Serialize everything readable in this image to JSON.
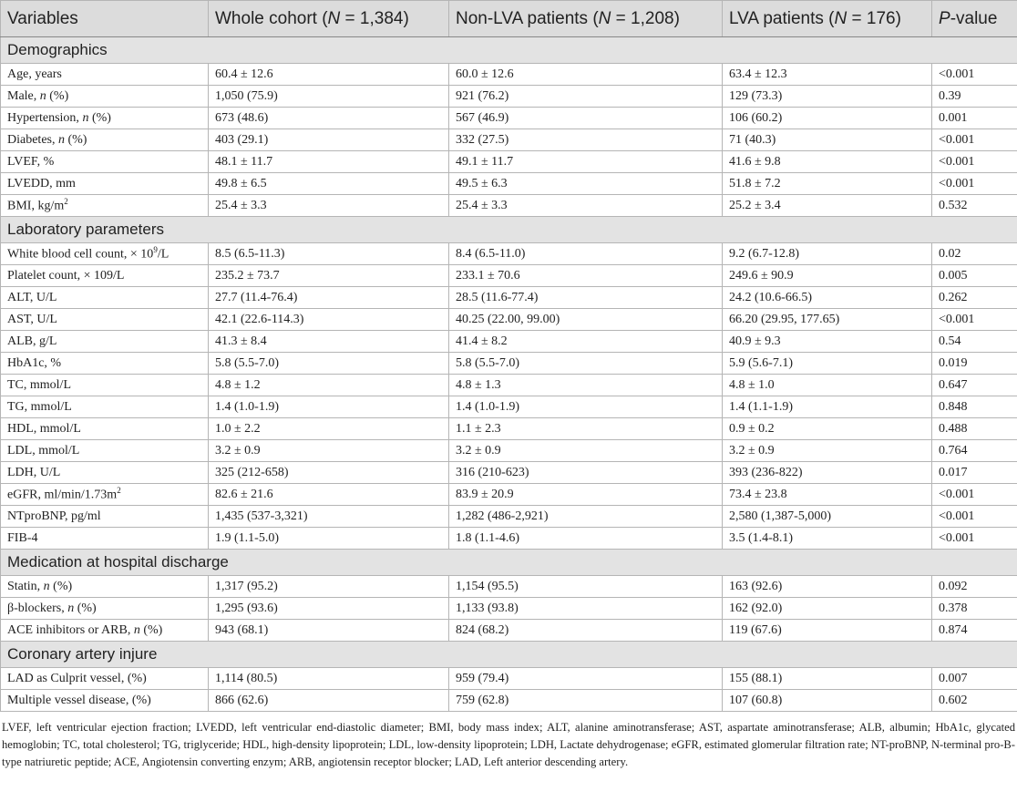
{
  "table": {
    "header": [
      "Variables",
      [
        "Whole cohort (",
        {
          "i": "N"
        },
        " = 1,384)"
      ],
      [
        "Non-LVA patients (",
        {
          "i": "N"
        },
        " = 1,208)"
      ],
      [
        "LVA patients (",
        {
          "i": "N"
        },
        " = 176)"
      ],
      [
        {
          "i": "P"
        },
        "-value"
      ]
    ],
    "sections": [
      {
        "title": "Demographics",
        "rows": [
          [
            "Age, years",
            "60.4 ± 12.6",
            "60.0 ± 12.6",
            "63.4 ± 12.3",
            "<0.001"
          ],
          [
            [
              "Male, ",
              {
                "i": "n"
              },
              " (%)"
            ],
            "1,050 (75.9)",
            "921 (76.2)",
            "129 (73.3)",
            "0.39"
          ],
          [
            [
              "Hypertension, ",
              {
                "i": "n"
              },
              " (%)"
            ],
            "673 (48.6)",
            "567 (46.9)",
            "106 (60.2)",
            "0.001"
          ],
          [
            [
              "Diabetes, ",
              {
                "i": "n"
              },
              " (%)"
            ],
            "403 (29.1)",
            "332 (27.5)",
            "71 (40.3)",
            "<0.001"
          ],
          [
            "LVEF, %",
            "48.1 ± 11.7",
            "49.1 ± 11.7",
            "41.6 ± 9.8",
            "<0.001"
          ],
          [
            "LVEDD, mm",
            "49.8 ± 6.5",
            "49.5 ± 6.3",
            "51.8 ± 7.2",
            "<0.001"
          ],
          [
            [
              "BMI, kg/m",
              {
                "sup": "2"
              }
            ],
            "25.4 ± 3.3",
            "25.4 ± 3.3",
            "25.2 ± 3.4",
            "0.532"
          ]
        ]
      },
      {
        "title": "Laboratory parameters",
        "rows": [
          [
            [
              "White blood cell count, × 10",
              {
                "sup": "9"
              },
              "/L"
            ],
            "8.5 (6.5-11.3)",
            "8.4 (6.5-11.0)",
            "9.2 (6.7-12.8)",
            "0.02"
          ],
          [
            "Platelet count, × 109/L",
            "235.2 ± 73.7",
            "233.1 ± 70.6",
            "249.6 ± 90.9",
            "0.005"
          ],
          [
            "ALT, U/L",
            "27.7 (11.4-76.4)",
            "28.5 (11.6-77.4)",
            "24.2 (10.6-66.5)",
            "0.262"
          ],
          [
            "AST, U/L",
            "42.1 (22.6-114.3)",
            "40.25 (22.00, 99.00)",
            "66.20 (29.95, 177.65)",
            "<0.001"
          ],
          [
            "ALB, g/L",
            "41.3 ± 8.4",
            "41.4 ± 8.2",
            "40.9 ± 9.3",
            "0.54"
          ],
          [
            "HbA1c, %",
            "5.8 (5.5-7.0)",
            "5.8 (5.5-7.0)",
            "5.9 (5.6-7.1)",
            "0.019"
          ],
          [
            "TC, mmol/L",
            "4.8 ± 1.2",
            "4.8 ± 1.3",
            "4.8 ± 1.0",
            "0.647"
          ],
          [
            "TG, mmol/L",
            "1.4 (1.0-1.9)",
            "1.4 (1.0-1.9)",
            "1.4 (1.1-1.9)",
            "0.848"
          ],
          [
            "HDL, mmol/L",
            "1.0 ± 2.2",
            "1.1 ± 2.3",
            "0.9 ± 0.2",
            "0.488"
          ],
          [
            "LDL, mmol/L",
            "3.2 ± 0.9",
            "3.2 ± 0.9",
            "3.2 ± 0.9",
            "0.764"
          ],
          [
            "LDH, U/L",
            "325 (212-658)",
            "316 (210-623)",
            "393 (236-822)",
            "0.017"
          ],
          [
            [
              "eGFR, ml/min/1.73m",
              {
                "sup": "2"
              }
            ],
            "82.6 ± 21.6",
            "83.9 ± 20.9",
            "73.4 ± 23.8",
            "<0.001"
          ],
          [
            "NTproBNP, pg/ml",
            "1,435 (537-3,321)",
            "1,282 (486-2,921)",
            "2,580 (1,387-5,000)",
            "<0.001"
          ],
          [
            "FIB-4",
            "1.9 (1.1-5.0)",
            "1.8 (1.1-4.6)",
            "3.5 (1.4-8.1)",
            "<0.001"
          ]
        ]
      },
      {
        "title": "Medication at hospital discharge",
        "rows": [
          [
            [
              "Statin, ",
              {
                "i": "n"
              },
              " (%)"
            ],
            "1,317 (95.2)",
            "1,154 (95.5)",
            "163 (92.6)",
            "0.092"
          ],
          [
            [
              "β-blockers, ",
              {
                "i": "n"
              },
              " (%)"
            ],
            "1,295 (93.6)",
            "1,133 (93.8)",
            "162 (92.0)",
            "0.378"
          ],
          [
            [
              "ACE inhibitors or ARB, ",
              {
                "i": "n"
              },
              " (%)"
            ],
            "943 (68.1)",
            "824 (68.2)",
            "119 (67.6)",
            "0.874"
          ]
        ]
      },
      {
        "title": "Coronary artery injure",
        "rows": [
          [
            "LAD as Culprit vessel, (%)",
            "1,114 (80.5)",
            "959 (79.4)",
            "155 (88.1)",
            "0.007"
          ],
          [
            "Multiple vessel disease, (%)",
            "866 (62.6)",
            "759 (62.8)",
            "107 (60.8)",
            "0.602"
          ]
        ]
      }
    ]
  },
  "footnote": "LVEF, left ventricular ejection fraction; LVEDD, left ventricular end-diastolic diameter; BMI, body mass index; ALT, alanine aminotransferase; AST, aspartate aminotransferase; ALB, albumin; HbA1c, glycated hemoglobin; TC, total cholesterol; TG, triglyceride; HDL, high-density lipoprotein; LDL, low-density lipoprotein; LDH, Lactate dehydrogenase; eGFR, estimated glomerular filtration rate; NT-proBNP, N-terminal pro-B-type natriuretic peptide; ACE, Angiotensin converting enzym; ARB, angiotensin receptor blocker; LAD, Left anterior descending artery."
}
